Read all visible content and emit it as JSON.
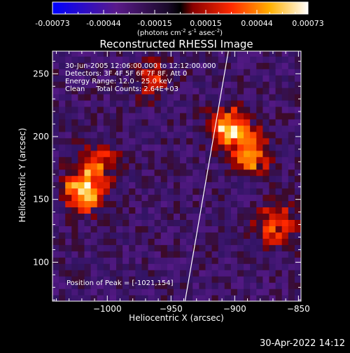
{
  "colorbar": {
    "ticks": [
      "-0.00073",
      "-0.00044",
      "-0.00015",
      "0.00015",
      "0.00044",
      "0.00073"
    ],
    "unit_main": "(photons cm",
    "unit_exp1": "-2",
    "unit_mid": " s",
    "unit_exp2": "-1",
    "unit_end": " asec",
    "unit_exp3": "-2",
    "unit_close": ")"
  },
  "annotations": {
    "time_range": "30-Jun-2005 12:06:00.000 to 12:12:00.000",
    "detectors": "Detectors: 3F 4F 5F 6F 7F 8F, Att 0",
    "energy": "Energy Range: 12.0 - 25.0 keV",
    "method": "Clean     Total Counts: 2.64E+03",
    "peak": "Position of Peak = [-1021,154]"
  },
  "footer": {
    "timestamp": "30-Apr-2022 14:12"
  },
  "colors": {
    "background": "#000000",
    "axis": "#ffffff",
    "low": "#3a1a7a",
    "high": "#fff2b0"
  },
  "chart_data": {
    "type": "heatmap",
    "title": "Reconstructed RHESSI Image",
    "xlabel": "Heliocentric X (arcsec)",
    "ylabel": "Heliocentric Y (arcsec)",
    "xlim": [
      -1043,
      -848
    ],
    "ylim": [
      69,
      268
    ],
    "x_ticks": [
      -1000,
      -950,
      -900,
      -850
    ],
    "y_ticks": [
      100,
      150,
      200,
      250
    ],
    "x_tick_labels": [
      "−1000",
      "−950",
      "−900",
      "−850"
    ],
    "y_tick_labels": [
      "100",
      "150",
      "200",
      "250"
    ],
    "grid": false,
    "color_range": [
      -0.00073,
      0.00073
    ],
    "peak_position": [
      -1021,
      154
    ],
    "sources": [
      {
        "x": -1021,
        "y": 154,
        "intensity": 0.00073
      },
      {
        "x": -906,
        "y": 205,
        "intensity": 0.00068
      },
      {
        "x": -888,
        "y": 182,
        "intensity": 0.00052
      },
      {
        "x": -870,
        "y": 128,
        "intensity": 0.00045
      },
      {
        "x": -1010,
        "y": 178,
        "intensity": 0.0004
      },
      {
        "x": -968,
        "y": 244,
        "intensity": 0.00032
      }
    ],
    "limb_line": [
      [
        -939,
        69
      ],
      [
        -905,
        268
      ]
    ]
  }
}
